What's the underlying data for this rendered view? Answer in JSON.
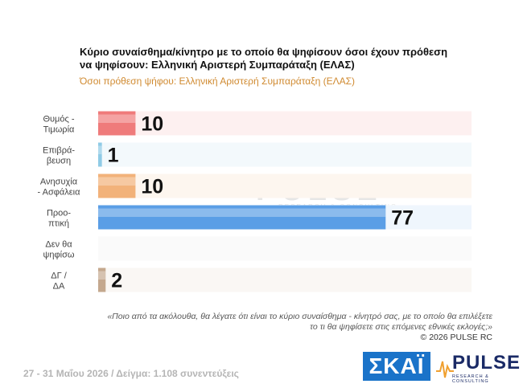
{
  "header": {
    "title": "Κύριο συναίσθημα/κίνητρο με το οποίο θα ψηφίσουν όσοι έχουν πρόθεση να ψηφίσουν: Ελληνική Αριστερή Συμπαράταξη (ΕΛΑΣ)",
    "subtitle": "Όσοι πρόθεση ψήφου: Ελληνική Αριστερή Συμπαράταξη (ΕΛΑΣ)"
  },
  "chart_data": {
    "type": "bar",
    "orientation": "horizontal",
    "categories": [
      [
        "Θυμός -",
        "Τιμωρία"
      ],
      [
        "Επιβρά-",
        "βευση"
      ],
      [
        "Ανησυχία",
        "- Ασφάλεια"
      ],
      [
        "Προο-",
        "πτική"
      ],
      [
        "Δεν θα",
        "ψηφίσω"
      ],
      [
        "ΔΓ /",
        "ΔΑ"
      ]
    ],
    "values": [
      10,
      1,
      10,
      77,
      null,
      2
    ],
    "data_labels": [
      "10",
      "1",
      "10",
      "77",
      "",
      "2"
    ],
    "colors": [
      "#ef7b7b",
      "#8fcbe6",
      "#f2b27a",
      "#5a9ee6",
      "#dddddd",
      "#c4a88e"
    ],
    "row_colors": [
      "#fdf0f0",
      "#f3f9fc",
      "#fdf6ef",
      "#eff6fd",
      "#fafafa",
      "#faf7f4"
    ],
    "xlim": [
      0,
      100
    ],
    "grid": false,
    "legend": "none"
  },
  "watermark": {
    "main": "PULSE",
    "sub": "RESEARCH & CONSULTING"
  },
  "notes": {
    "question_line1": "«Ποιο από τα ακόλουθα, θα λέγατε ότι είναι το κύριο συναίσθημα - κίνητρό σας, με το οποίο θα επιλέξετε",
    "question_line2": "το τι θα ψηφίσετε στις επόμενες εθνικές εκλογές;»",
    "copyright": "©  2026  PULSE RC"
  },
  "footer": {
    "text": "27 - 31  Μαΐου 2026  /  Δείγμα:  1.108 συνεντεύξεις"
  },
  "logos": {
    "skai": "ΣΚΑΪ",
    "pulse": "PULSE",
    "pulse_sub": "RESEARCH & CONSULTING"
  }
}
